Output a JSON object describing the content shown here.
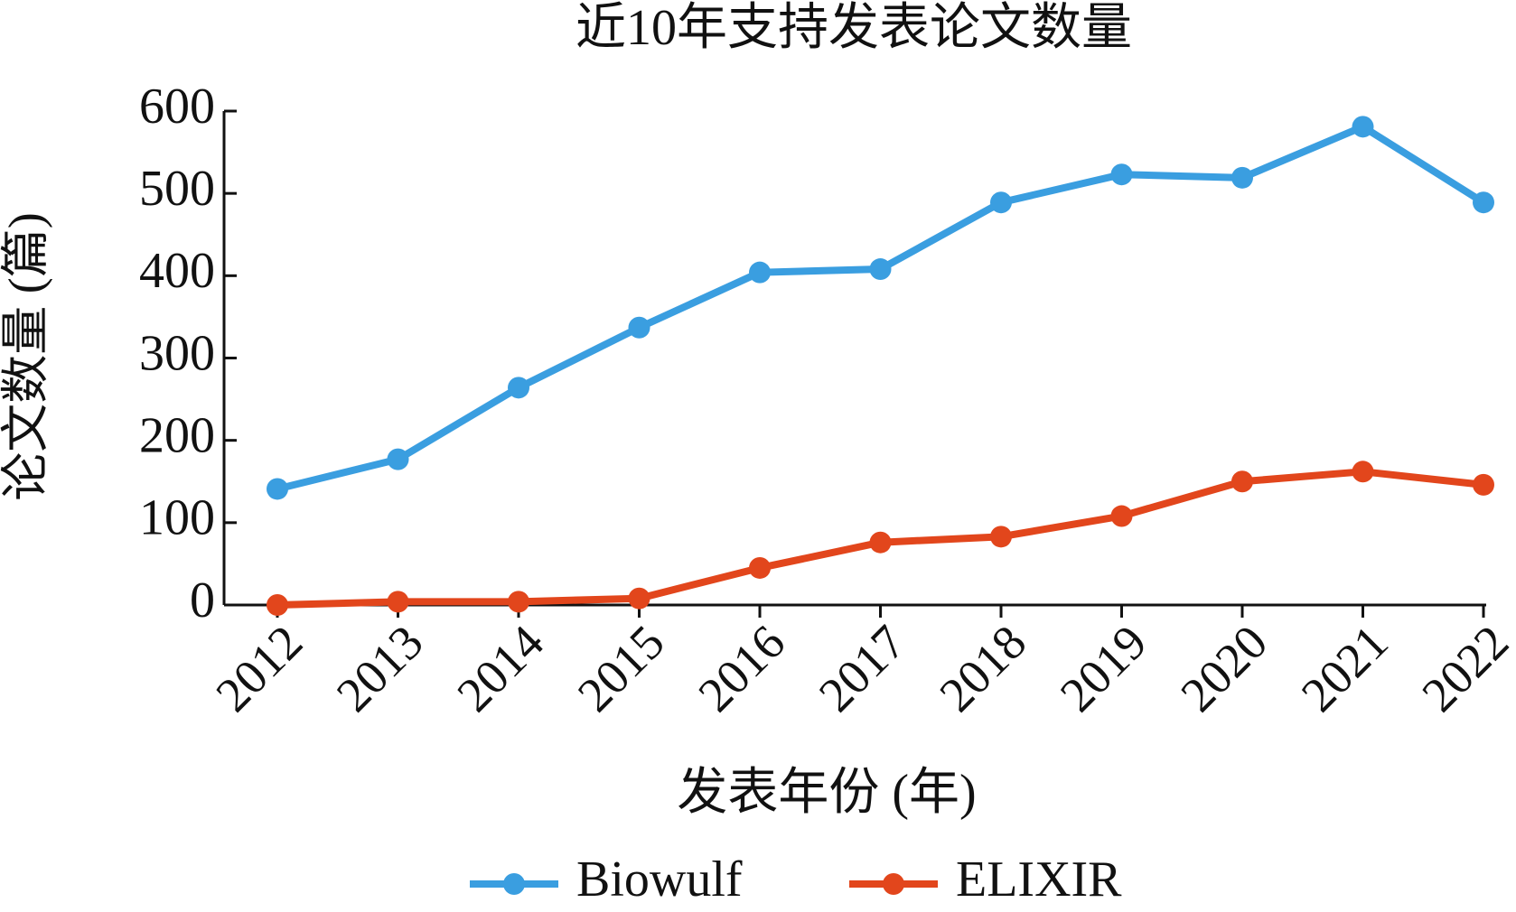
{
  "chart_data": {
    "type": "line",
    "title": "近10年支持发表论文数量",
    "x_label": "发表年份 (年)",
    "y_label": "论文数量 (篇)",
    "categories": [
      "2012",
      "2013",
      "2014",
      "2015",
      "2016",
      "2017",
      "2018",
      "2019",
      "2020",
      "2021",
      "2022"
    ],
    "series": [
      {
        "name": "Biowulf",
        "color": "#3a9ee0",
        "values": [
          141,
          177,
          264,
          337,
          404,
          408,
          489,
          523,
          519,
          581,
          489
        ]
      },
      {
        "name": "ELIXIR",
        "color": "#e2461c",
        "values": [
          0,
          4,
          4,
          8,
          45,
          76,
          83,
          108,
          150,
          162,
          146
        ]
      }
    ],
    "ylim": [
      0,
      600
    ],
    "yticks": [
      0,
      100,
      200,
      300,
      400,
      500,
      600
    ],
    "grid": false,
    "legend": "bottom"
  }
}
